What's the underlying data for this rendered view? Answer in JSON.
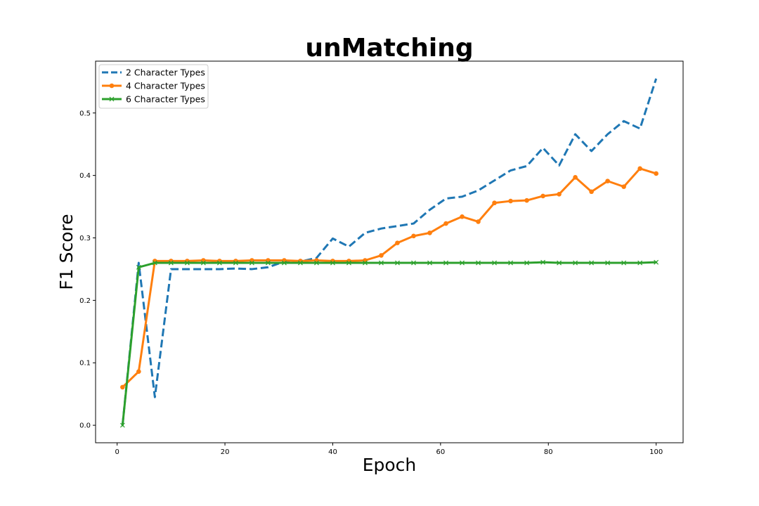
{
  "chart_data": {
    "type": "line",
    "title": "unMatching",
    "xlabel": "Epoch",
    "ylabel": "F1 Score",
    "xlim": [
      -4,
      105
    ],
    "ylim": [
      -0.028,
      0.583
    ],
    "xticks": [
      0,
      20,
      40,
      60,
      80,
      100
    ],
    "yticks": [
      0.0,
      0.1,
      0.2,
      0.3,
      0.4,
      0.5
    ],
    "xtick_labels": [
      "0",
      "20",
      "40",
      "60",
      "80",
      "100"
    ],
    "ytick_labels": [
      "0.0",
      "0.1",
      "0.2",
      "0.3",
      "0.4",
      "0.5"
    ],
    "grid": false,
    "legend_position": "top-left",
    "series": [
      {
        "name": "2 Character Types",
        "color": "#1f77b4",
        "style": "dashed",
        "marker": "none",
        "x": [
          1,
          4,
          7,
          10,
          13,
          16,
          19,
          22,
          25,
          28,
          31,
          34,
          37,
          40,
          43,
          46,
          49,
          52,
          55,
          58,
          61,
          64,
          67,
          70,
          73,
          76,
          79,
          82,
          85,
          88,
          91,
          94,
          97,
          100
        ],
        "y": [
          0.0,
          0.26,
          0.045,
          0.25,
          0.25,
          0.25,
          0.25,
          0.251,
          0.25,
          0.253,
          0.262,
          0.262,
          0.268,
          0.299,
          0.286,
          0.308,
          0.315,
          0.319,
          0.323,
          0.345,
          0.363,
          0.366,
          0.376,
          0.392,
          0.408,
          0.415,
          0.444,
          0.416,
          0.466,
          0.439,
          0.466,
          0.487,
          0.475,
          0.555
        ]
      },
      {
        "name": "4 Character Types",
        "color": "#ff7f0e",
        "style": "solid",
        "marker": "circle",
        "x": [
          1,
          4,
          7,
          10,
          13,
          16,
          19,
          22,
          25,
          28,
          31,
          34,
          37,
          40,
          43,
          46,
          49,
          52,
          55,
          58,
          61,
          64,
          67,
          70,
          73,
          76,
          79,
          82,
          85,
          88,
          91,
          94,
          97,
          100
        ],
        "y": [
          0.061,
          0.086,
          0.263,
          0.263,
          0.263,
          0.264,
          0.263,
          0.263,
          0.264,
          0.264,
          0.264,
          0.263,
          0.264,
          0.263,
          0.263,
          0.264,
          0.272,
          0.292,
          0.303,
          0.308,
          0.323,
          0.334,
          0.326,
          0.356,
          0.359,
          0.36,
          0.367,
          0.37,
          0.397,
          0.374,
          0.391,
          0.382,
          0.411,
          0.403
        ]
      },
      {
        "name": "6 Character Types",
        "color": "#2ca02c",
        "style": "solid",
        "marker": "x",
        "x": [
          1,
          4,
          7,
          10,
          13,
          16,
          19,
          22,
          25,
          28,
          31,
          34,
          37,
          40,
          43,
          46,
          49,
          52,
          55,
          58,
          61,
          64,
          67,
          70,
          73,
          76,
          79,
          82,
          85,
          88,
          91,
          94,
          97,
          100
        ],
        "y": [
          0.0,
          0.253,
          0.26,
          0.26,
          0.26,
          0.26,
          0.26,
          0.26,
          0.26,
          0.26,
          0.26,
          0.26,
          0.26,
          0.26,
          0.26,
          0.26,
          0.26,
          0.26,
          0.26,
          0.26,
          0.26,
          0.26,
          0.26,
          0.26,
          0.26,
          0.26,
          0.261,
          0.26,
          0.26,
          0.26,
          0.26,
          0.26,
          0.26,
          0.261
        ]
      }
    ]
  }
}
